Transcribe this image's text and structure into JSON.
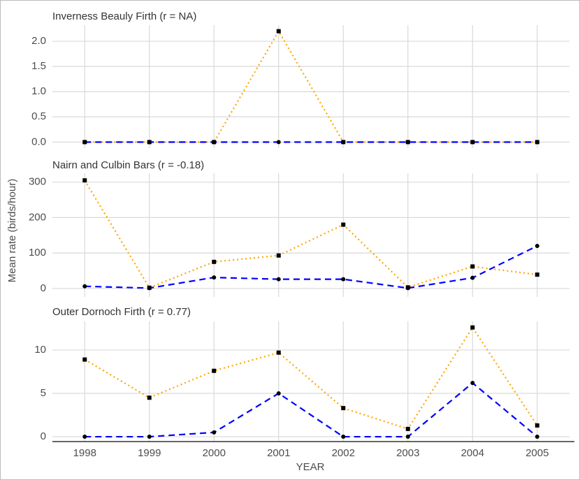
{
  "xlabel": "YEAR",
  "ylabel": "Mean rate (birds/hour)",
  "chart_data": [
    {
      "type": "line",
      "title": "Inverness Beauly Firth (r = NA)",
      "x": [
        1998,
        1999,
        2000,
        2001,
        2002,
        2003,
        2004,
        2005
      ],
      "series": [
        {
          "color": "#ffa500",
          "dash": "dotted",
          "marker": "square",
          "marker_color": "#000000",
          "values": [
            0,
            0,
            0,
            2.2,
            0,
            0,
            0,
            0
          ]
        },
        {
          "color": "#0000ff",
          "dash": "dashed",
          "marker": "circle",
          "marker_color": "#000000",
          "values": [
            0,
            0,
            0,
            0,
            0,
            0,
            0,
            0
          ]
        }
      ],
      "xlim": [
        1997.5,
        2005.5
      ],
      "xticks": [
        1998,
        1999,
        2000,
        2001,
        2002,
        2003,
        2004,
        2005
      ],
      "ylim": [
        -0.12,
        2.32
      ],
      "yticks": [
        {
          "value": 0,
          "label": "0.0"
        },
        0.5,
        {
          "value": 1,
          "label": "1.0"
        },
        1.5,
        {
          "value": 2,
          "label": "2.0"
        }
      ],
      "grid": true
    },
    {
      "type": "line",
      "title": "Nairn and Culbin Bars (r = -0.18)",
      "x": [
        1998,
        1999,
        2000,
        2001,
        2002,
        2003,
        2004,
        2005
      ],
      "series": [
        {
          "color": "#ffa500",
          "dash": "dotted",
          "marker": "square",
          "marker_color": "#000000",
          "values": [
            305,
            2,
            75,
            93,
            180,
            3,
            62,
            39
          ]
        },
        {
          "color": "#0000ff",
          "dash": "dashed",
          "marker": "circle",
          "marker_color": "#000000",
          "values": [
            6,
            1,
            31,
            26,
            26,
            1,
            30,
            120
          ]
        }
      ],
      "xlim": [
        1997.5,
        2005.5
      ],
      "xticks": [
        1998,
        1999,
        2000,
        2001,
        2002,
        2003,
        2004,
        2005
      ],
      "ylim": [
        -24,
        325
      ],
      "yticks": [
        0,
        100,
        200,
        300
      ],
      "grid": true
    },
    {
      "type": "line",
      "title": "Outer Dornoch Firth (r = 0.77)",
      "x": [
        1998,
        1999,
        2000,
        2001,
        2002,
        2003,
        2004,
        2005
      ],
      "series": [
        {
          "color": "#ffa500",
          "dash": "dotted",
          "marker": "square",
          "marker_color": "#000000",
          "values": [
            8.9,
            4.5,
            7.6,
            9.7,
            3.3,
            0.9,
            12.6,
            1.3
          ]
        },
        {
          "color": "#0000ff",
          "dash": "dashed",
          "marker": "circle",
          "marker_color": "#000000",
          "values": [
            0,
            0,
            0.5,
            5.0,
            0,
            0,
            6.2,
            0
          ]
        }
      ],
      "xlim": [
        1997.5,
        2005.5
      ],
      "xticks": [
        1998,
        1999,
        2000,
        2001,
        2002,
        2003,
        2004,
        2005
      ],
      "ylim": [
        -0.56,
        13.3
      ],
      "yticks": [
        0,
        5,
        10
      ],
      "grid": true
    }
  ]
}
